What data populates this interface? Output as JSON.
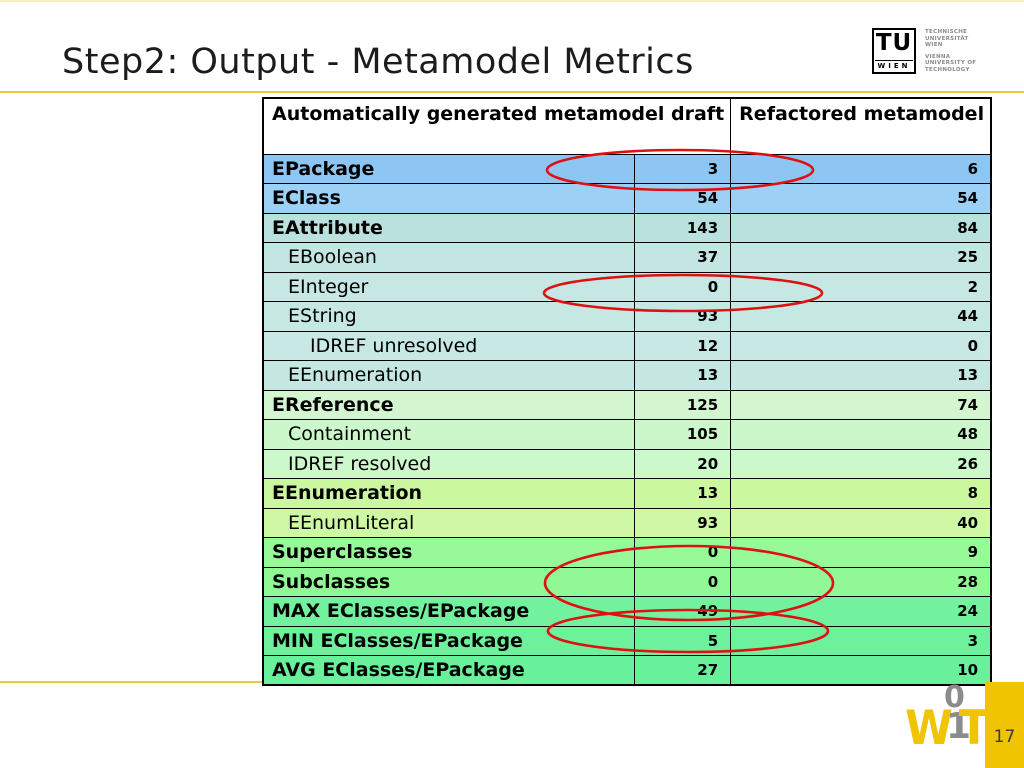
{
  "slide": {
    "title": "Step2: Output - Metamodel Metrics",
    "page_number": "17"
  },
  "colors": {
    "accent_line": "#f3c73f",
    "page_box_yellow": "#f0c400",
    "logo_yellow": "#f0c400",
    "logo_gray": "#8c8c8c",
    "highlight_red": "#dd1111",
    "header_blue": "#8ec6f3",
    "teal_section": "#c6e7e3",
    "pale_green_section": "#cdf6cc",
    "yellow_green_section": "#cbf79e",
    "light_green_section": "#97f998",
    "deep_green_section": "#6df19d"
  },
  "tu_logo": {
    "acronym": "TU",
    "city": "WIEN",
    "de_line1": "TECHNISCHE",
    "de_line2": "UNIVERSITÄT",
    "de_line3": "WIEN",
    "en_line1": "VIENNA",
    "en_line2": "UNIVERSITY OF",
    "en_line3": "TECHNOLOGY"
  },
  "wit_logo": {
    "w": "W",
    "zero": "0",
    "one": "1",
    "t": "T"
  },
  "table": {
    "headers": [
      {
        "label": "Automatically generated metamodel draft",
        "colspan": 2
      },
      {
        "label": "Refactored metamodel",
        "colspan": 1
      }
    ],
    "rows": [
      {
        "label": "EPackage",
        "draft": "3",
        "refactored": "6",
        "bold": true,
        "indent": 0,
        "bg": "#8ec6f3"
      },
      {
        "label": "EClass",
        "draft": "54",
        "refactored": "54",
        "bold": true,
        "indent": 0,
        "bg": "#9cd0f4"
      },
      {
        "label": "EAttribute",
        "draft": "143",
        "refactored": "84",
        "bold": true,
        "indent": 0,
        "bg": "#b9e1de"
      },
      {
        "label": "EBoolean",
        "draft": "37",
        "refactored": "25",
        "bold": false,
        "indent": 1,
        "bg": "#c4e6e2"
      },
      {
        "label": "EInteger",
        "draft": "0",
        "refactored": "2",
        "bold": false,
        "indent": 1,
        "bg": "#c6e7e3"
      },
      {
        "label": "EString",
        "draft": "93",
        "refactored": "44",
        "bold": false,
        "indent": 1,
        "bg": "#c6e8e3"
      },
      {
        "label": "IDREF unresolved",
        "draft": "12",
        "refactored": "0",
        "bold": false,
        "indent": 2,
        "bg": "#c7e8e4"
      },
      {
        "label": "EEnumeration",
        "draft": "13",
        "refactored": "13",
        "bold": false,
        "indent": 1,
        "bg": "#c4e7e1"
      },
      {
        "label": "EReference",
        "draft": "125",
        "refactored": "74",
        "bold": true,
        "indent": 0,
        "bg": "#d3f6d1"
      },
      {
        "label": "Containment",
        "draft": "105",
        "refactored": "48",
        "bold": false,
        "indent": 1,
        "bg": "#ccf7cb"
      },
      {
        "label": "IDREF resolved",
        "draft": "20",
        "refactored": "26",
        "bold": false,
        "indent": 1,
        "bg": "#cdf8cc"
      },
      {
        "label": "EEnumeration",
        "draft": "13",
        "refactored": "8",
        "bold": true,
        "indent": 0,
        "bg": "#cbf79e"
      },
      {
        "label": "EEnumLiteral",
        "draft": "93",
        "refactored": "40",
        "bold": false,
        "indent": 1,
        "bg": "#cff8a4"
      },
      {
        "label": "Superclasses",
        "draft": "0",
        "refactored": "9",
        "bold": true,
        "indent": 0,
        "bg": "#97f998"
      },
      {
        "label": "Subclasses",
        "draft": "0",
        "refactored": "28",
        "bold": true,
        "indent": 0,
        "bg": "#90f894"
      },
      {
        "label": "MAX EClasses/EPackage",
        "draft": "49",
        "refactored": "24",
        "bold": true,
        "indent": 0,
        "bg": "#72f29f"
      },
      {
        "label": "MIN EClasses/EPackage",
        "draft": "5",
        "refactored": "3",
        "bold": true,
        "indent": 0,
        "bg": "#6df19d"
      },
      {
        "label": "AVG EClasses/EPackage",
        "draft": "27",
        "refactored": "10",
        "bold": true,
        "indent": 0,
        "bg": "#69f09b"
      }
    ]
  }
}
